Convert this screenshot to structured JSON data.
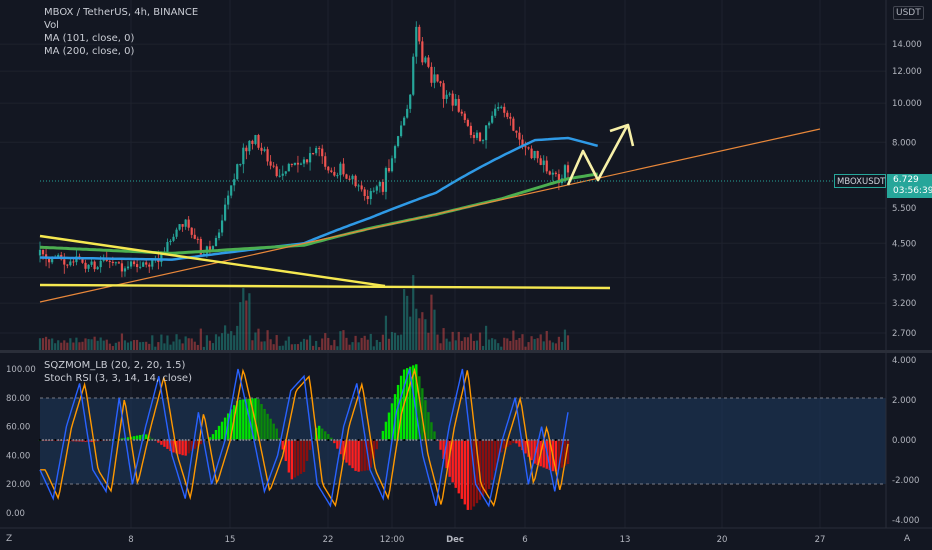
{
  "header": {
    "symbol_line": "MBOX / TetherUS, 4h, BINANCE",
    "vol_label": "Vol",
    "ma1_label": "MA (101, close, 0)",
    "ma2_label": "MA (200, close, 0)",
    "currency": "USDT"
  },
  "indicator_legend": {
    "sqz_label": "SQZMOM_LB (20, 2, 20, 1.5)",
    "stoch_label": "Stoch RSI (3, 3, 14, 14, close)"
  },
  "price_tag": {
    "symbol": "MBOXUSDT",
    "price": "6.729",
    "countdown": "03:56:39"
  },
  "footer": {
    "left_corner": "Z",
    "right_corner": "A"
  },
  "colors": {
    "background": "#131722",
    "up": "#26a69a",
    "down": "#ef5350",
    "ma101": "#2f9ae6",
    "ma200": "#4caf50",
    "trendline_yellow": "#f5e850",
    "trendline_orange": "#e8873a",
    "stoch_k": "#2962ff",
    "stoch_d": "#ff9800",
    "sqz_green": "#00e600",
    "sqz_red": "#ff1f1f",
    "band": "#1e3a5f"
  },
  "chart_data": [
    {
      "type": "candlestick",
      "title": "MBOX / TetherUS, 4h, BINANCE",
      "x_ticks": [
        "8",
        "15",
        "22",
        "12:00",
        "Dec",
        "6",
        "13",
        "20",
        "27"
      ],
      "y_ticks": [
        "14.000",
        "12.000",
        "10.000",
        "8.000",
        "6.729",
        "5.500",
        "4.500",
        "3.700",
        "3.200",
        "2.700"
      ],
      "y_scale": "log",
      "series": [
        {
          "name": "MA (101, close, 0)",
          "approx_path": [
            [
              0.0,
              4.15
            ],
            [
              0.2,
              4.1
            ],
            [
              0.4,
              4.5
            ],
            [
              0.5,
              5.2
            ],
            [
              0.6,
              6.0
            ],
            [
              0.7,
              7.4
            ],
            [
              0.75,
              8.1
            ],
            [
              0.8,
              8.2
            ],
            [
              0.85,
              7.8
            ]
          ]
        },
        {
          "name": "MA (200, close, 0)",
          "approx_path": [
            [
              0.0,
              4.4
            ],
            [
              0.2,
              4.25
            ],
            [
              0.4,
              4.45
            ],
            [
              0.5,
              4.9
            ],
            [
              0.6,
              5.3
            ],
            [
              0.7,
              5.8
            ],
            [
              0.8,
              6.5
            ],
            [
              0.85,
              6.7
            ]
          ]
        }
      ],
      "price_path": [
        [
          0,
          4.2
        ],
        [
          0.05,
          4.1
        ],
        [
          0.1,
          4.05
        ],
        [
          0.15,
          4.0
        ],
        [
          0.18,
          4.1
        ],
        [
          0.2,
          4.6
        ],
        [
          0.22,
          5.2
        ],
        [
          0.24,
          4.4
        ],
        [
          0.26,
          4.2
        ],
        [
          0.28,
          5.5
        ],
        [
          0.3,
          7.0
        ],
        [
          0.32,
          8.2
        ],
        [
          0.34,
          7.6
        ],
        [
          0.36,
          6.5
        ],
        [
          0.38,
          7.0
        ],
        [
          0.4,
          7.2
        ],
        [
          0.42,
          7.8
        ],
        [
          0.44,
          6.6
        ],
        [
          0.46,
          6.8
        ],
        [
          0.48,
          6.3
        ],
        [
          0.5,
          6.0
        ],
        [
          0.52,
          6.3
        ],
        [
          0.54,
          8.0
        ],
        [
          0.56,
          10.0
        ],
        [
          0.57,
          15.0
        ],
        [
          0.58,
          13.0
        ],
        [
          0.6,
          11.0
        ],
        [
          0.62,
          10.5
        ],
        [
          0.64,
          9.5
        ],
        [
          0.66,
          8.0
        ],
        [
          0.68,
          9.0
        ],
        [
          0.7,
          9.8
        ],
        [
          0.72,
          8.2
        ],
        [
          0.74,
          7.5
        ],
        [
          0.76,
          7.0
        ],
        [
          0.78,
          6.6
        ],
        [
          0.8,
          6.7
        ]
      ],
      "annotations": {
        "yellow_descending_trendline": true,
        "yellow_horizontal_support": 3.7,
        "orange_ascending_trendline": true,
        "white_projection_arrow": "up"
      }
    },
    {
      "type": "line",
      "title": "SQZMOM_LB (20, 2, 20, 1.5) / Stoch RSI (3, 3, 14, 14, close)",
      "left_y_ticks": [
        "100.00",
        "80.00",
        "60.00",
        "40.00",
        "20.00",
        "0.00"
      ],
      "right_y_ticks": [
        "4.000",
        "2.000",
        "0.000",
        "-2.000",
        "-4.000"
      ],
      "stoch_band": [
        20,
        80
      ],
      "stoch_k_path": [
        [
          0,
          30
        ],
        [
          0.02,
          10
        ],
        [
          0.04,
          60
        ],
        [
          0.06,
          90
        ],
        [
          0.08,
          30
        ],
        [
          0.1,
          15
        ],
        [
          0.12,
          80
        ],
        [
          0.14,
          20
        ],
        [
          0.16,
          60
        ],
        [
          0.18,
          95
        ],
        [
          0.2,
          40
        ],
        [
          0.22,
          10
        ],
        [
          0.24,
          70
        ],
        [
          0.26,
          20
        ],
        [
          0.28,
          50
        ],
        [
          0.3,
          100
        ],
        [
          0.32,
          60
        ],
        [
          0.34,
          15
        ],
        [
          0.36,
          40
        ],
        [
          0.38,
          85
        ],
        [
          0.4,
          95
        ],
        [
          0.42,
          20
        ],
        [
          0.44,
          5
        ],
        [
          0.46,
          60
        ],
        [
          0.48,
          90
        ],
        [
          0.5,
          30
        ],
        [
          0.52,
          10
        ],
        [
          0.54,
          70
        ],
        [
          0.56,
          100
        ],
        [
          0.58,
          40
        ],
        [
          0.6,
          5
        ],
        [
          0.62,
          60
        ],
        [
          0.64,
          100
        ],
        [
          0.66,
          20
        ],
        [
          0.68,
          5
        ],
        [
          0.7,
          50
        ],
        [
          0.72,
          80
        ],
        [
          0.74,
          20
        ],
        [
          0.76,
          60
        ],
        [
          0.78,
          15
        ],
        [
          0.8,
          70
        ]
      ],
      "squeeze_momentum_path": [
        [
          0,
          0.0
        ],
        [
          0.08,
          -0.1
        ],
        [
          0.12,
          0.05
        ],
        [
          0.16,
          0.3
        ],
        [
          0.2,
          -0.6
        ],
        [
          0.22,
          -0.8
        ],
        [
          0.26,
          0.2
        ],
        [
          0.3,
          2.0
        ],
        [
          0.33,
          2.1
        ],
        [
          0.36,
          0.5
        ],
        [
          0.38,
          -2.0
        ],
        [
          0.4,
          -1.6
        ],
        [
          0.42,
          0.8
        ],
        [
          0.44,
          0.2
        ],
        [
          0.46,
          -1.0
        ],
        [
          0.48,
          -1.6
        ],
        [
          0.5,
          -1.5
        ],
        [
          0.52,
          0.5
        ],
        [
          0.55,
          3.5
        ],
        [
          0.57,
          3.8
        ],
        [
          0.59,
          1.2
        ],
        [
          0.62,
          -1.8
        ],
        [
          0.65,
          -3.6
        ],
        [
          0.68,
          -2.5
        ],
        [
          0.7,
          -0.5
        ],
        [
          0.72,
          -0.1
        ],
        [
          0.75,
          -1.2
        ],
        [
          0.78,
          -1.6
        ],
        [
          0.8,
          -1.2
        ]
      ]
    }
  ]
}
